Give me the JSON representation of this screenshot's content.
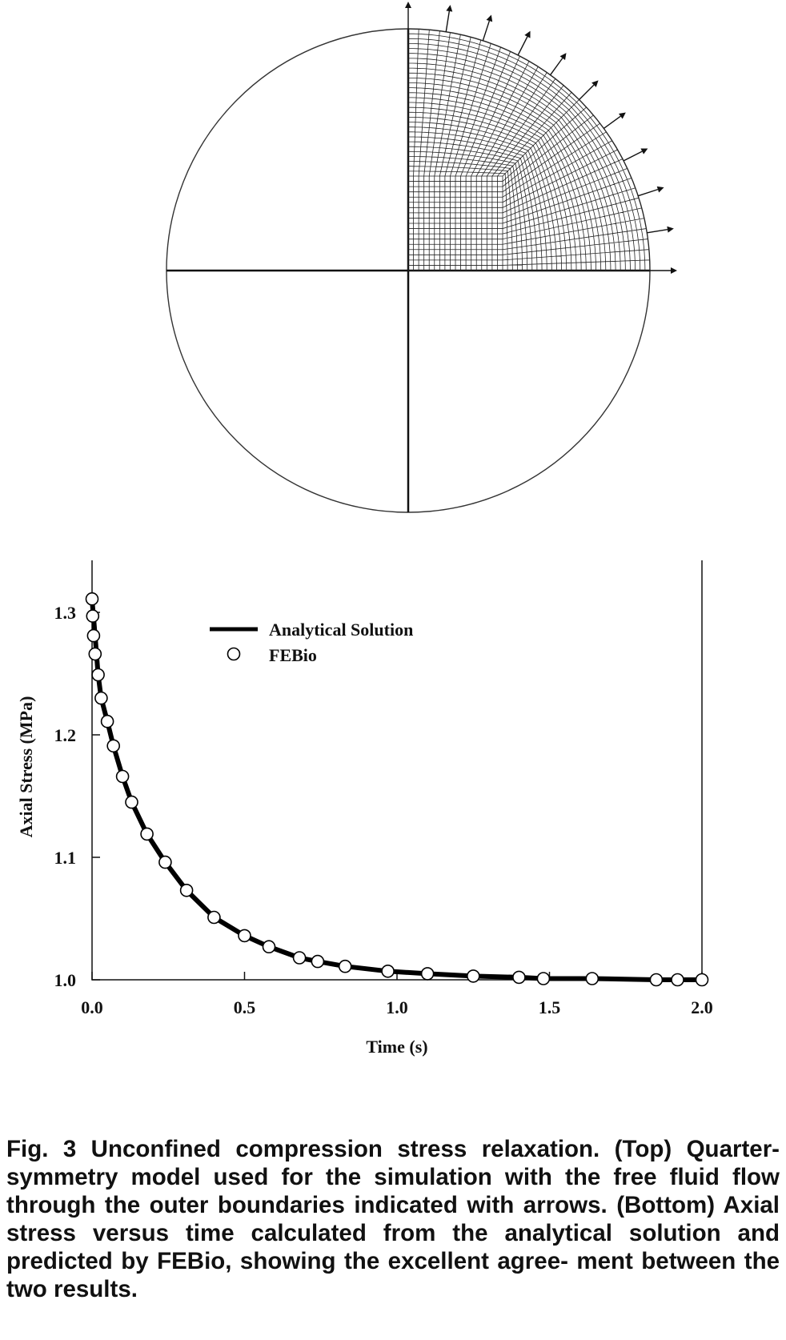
{
  "colors": {
    "ink": "#111111",
    "background": "#ffffff"
  },
  "mesh": {
    "description_visible": false,
    "quadrant": "top-right",
    "arrows": "outer-boundary-flow-arrows"
  },
  "chart_data": {
    "type": "line",
    "title": "",
    "xlabel": "Time (s)",
    "ylabel": "Axial Stress (MPa)",
    "xlim": [
      0.0,
      2.0
    ],
    "ylim": [
      1.0,
      1.3
    ],
    "xticks": [
      "0.0",
      "0.5",
      "1.0",
      "1.5",
      "2.0"
    ],
    "yticks": [
      "1.0",
      "1.1",
      "1.2",
      "1.3"
    ],
    "legend_position": "top-center",
    "grid": false,
    "series": [
      {
        "name": "Analytical Solution",
        "style": "thick-line",
        "x": [
          0.0,
          0.005,
          0.01,
          0.02,
          0.03,
          0.05,
          0.07,
          0.1,
          0.13,
          0.18,
          0.24,
          0.31,
          0.4,
          0.5,
          0.58,
          0.68,
          0.74,
          0.83,
          0.97,
          1.1,
          1.25,
          1.4,
          1.48,
          1.64,
          1.85,
          1.92,
          2.0
        ],
        "values": [
          1.31,
          1.296,
          1.281,
          1.249,
          1.23,
          1.211,
          1.191,
          1.166,
          1.145,
          1.119,
          1.096,
          1.073,
          1.051,
          1.036,
          1.027,
          1.018,
          1.015,
          1.011,
          1.007,
          1.005,
          1.003,
          1.002,
          1.001,
          1.001,
          1.0,
          1.0,
          1.0
        ]
      },
      {
        "name": "FEBio",
        "style": "open-circles",
        "x": [
          0.0,
          0.002,
          0.005,
          0.01,
          0.02,
          0.03,
          0.05,
          0.07,
          0.1,
          0.13,
          0.18,
          0.24,
          0.31,
          0.4,
          0.5,
          0.58,
          0.68,
          0.74,
          0.83,
          0.97,
          1.1,
          1.25,
          1.4,
          1.48,
          1.64,
          1.85,
          1.92,
          2.0
        ],
        "values": [
          1.311,
          1.297,
          1.281,
          1.266,
          1.249,
          1.23,
          1.211,
          1.191,
          1.166,
          1.145,
          1.119,
          1.096,
          1.073,
          1.051,
          1.036,
          1.027,
          1.018,
          1.015,
          1.011,
          1.007,
          1.005,
          1.003,
          1.002,
          1.001,
          1.001,
          1.0,
          1.0,
          1.0
        ]
      }
    ]
  },
  "caption": {
    "lines": [
      "Fig. 3 Unconfined compression stress relaxation. (Top)",
      "Quarter-symmetry model used for the simulation with the free",
      "fluid flow through the outer boundaries indicated with arrows.",
      "(Bottom) Axial stress versus time calculated from the analytical",
      "solution and predicted by FEBio, showing the excellent agree-",
      "ment between the two results."
    ]
  }
}
